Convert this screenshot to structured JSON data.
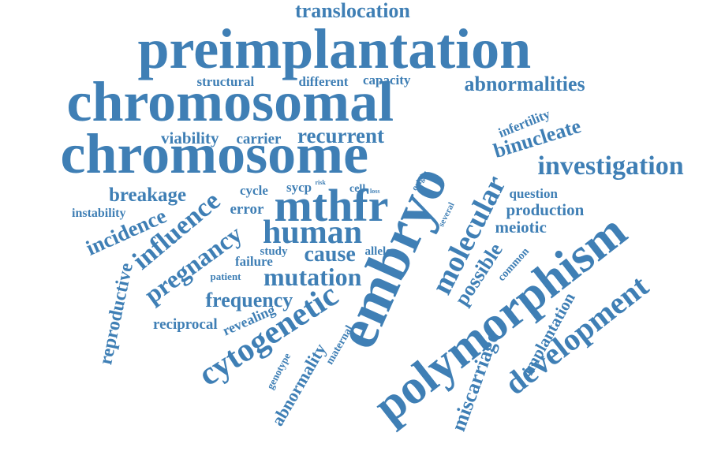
{
  "color": "#3f7fb5",
  "words": [
    "translocation",
    "preimplantation",
    "chromosomal",
    "chromosome",
    "structural",
    "different",
    "capacity",
    "abnormalities",
    "viability",
    "carrier",
    "recurrent",
    "infertility",
    "binucleate",
    "investigation",
    "embryo",
    "breakage",
    "cycle",
    "sycp",
    "risk",
    "cell",
    "loss",
    "origin",
    "mthfr",
    "question",
    "instability",
    "incidence",
    "influence",
    "error",
    "production",
    "several",
    "human",
    "molecular",
    "meiotic",
    "pregnancy",
    "cause",
    "study",
    "allele",
    "reproductive",
    "failure",
    "common",
    "possible",
    "patient",
    "mutation",
    "polymorphism",
    "frequency",
    "reciprocal",
    "revealing",
    "cytogenetic",
    "development",
    "implantation",
    "maternal",
    "abnormality",
    "genotype",
    "miscarriage"
  ]
}
